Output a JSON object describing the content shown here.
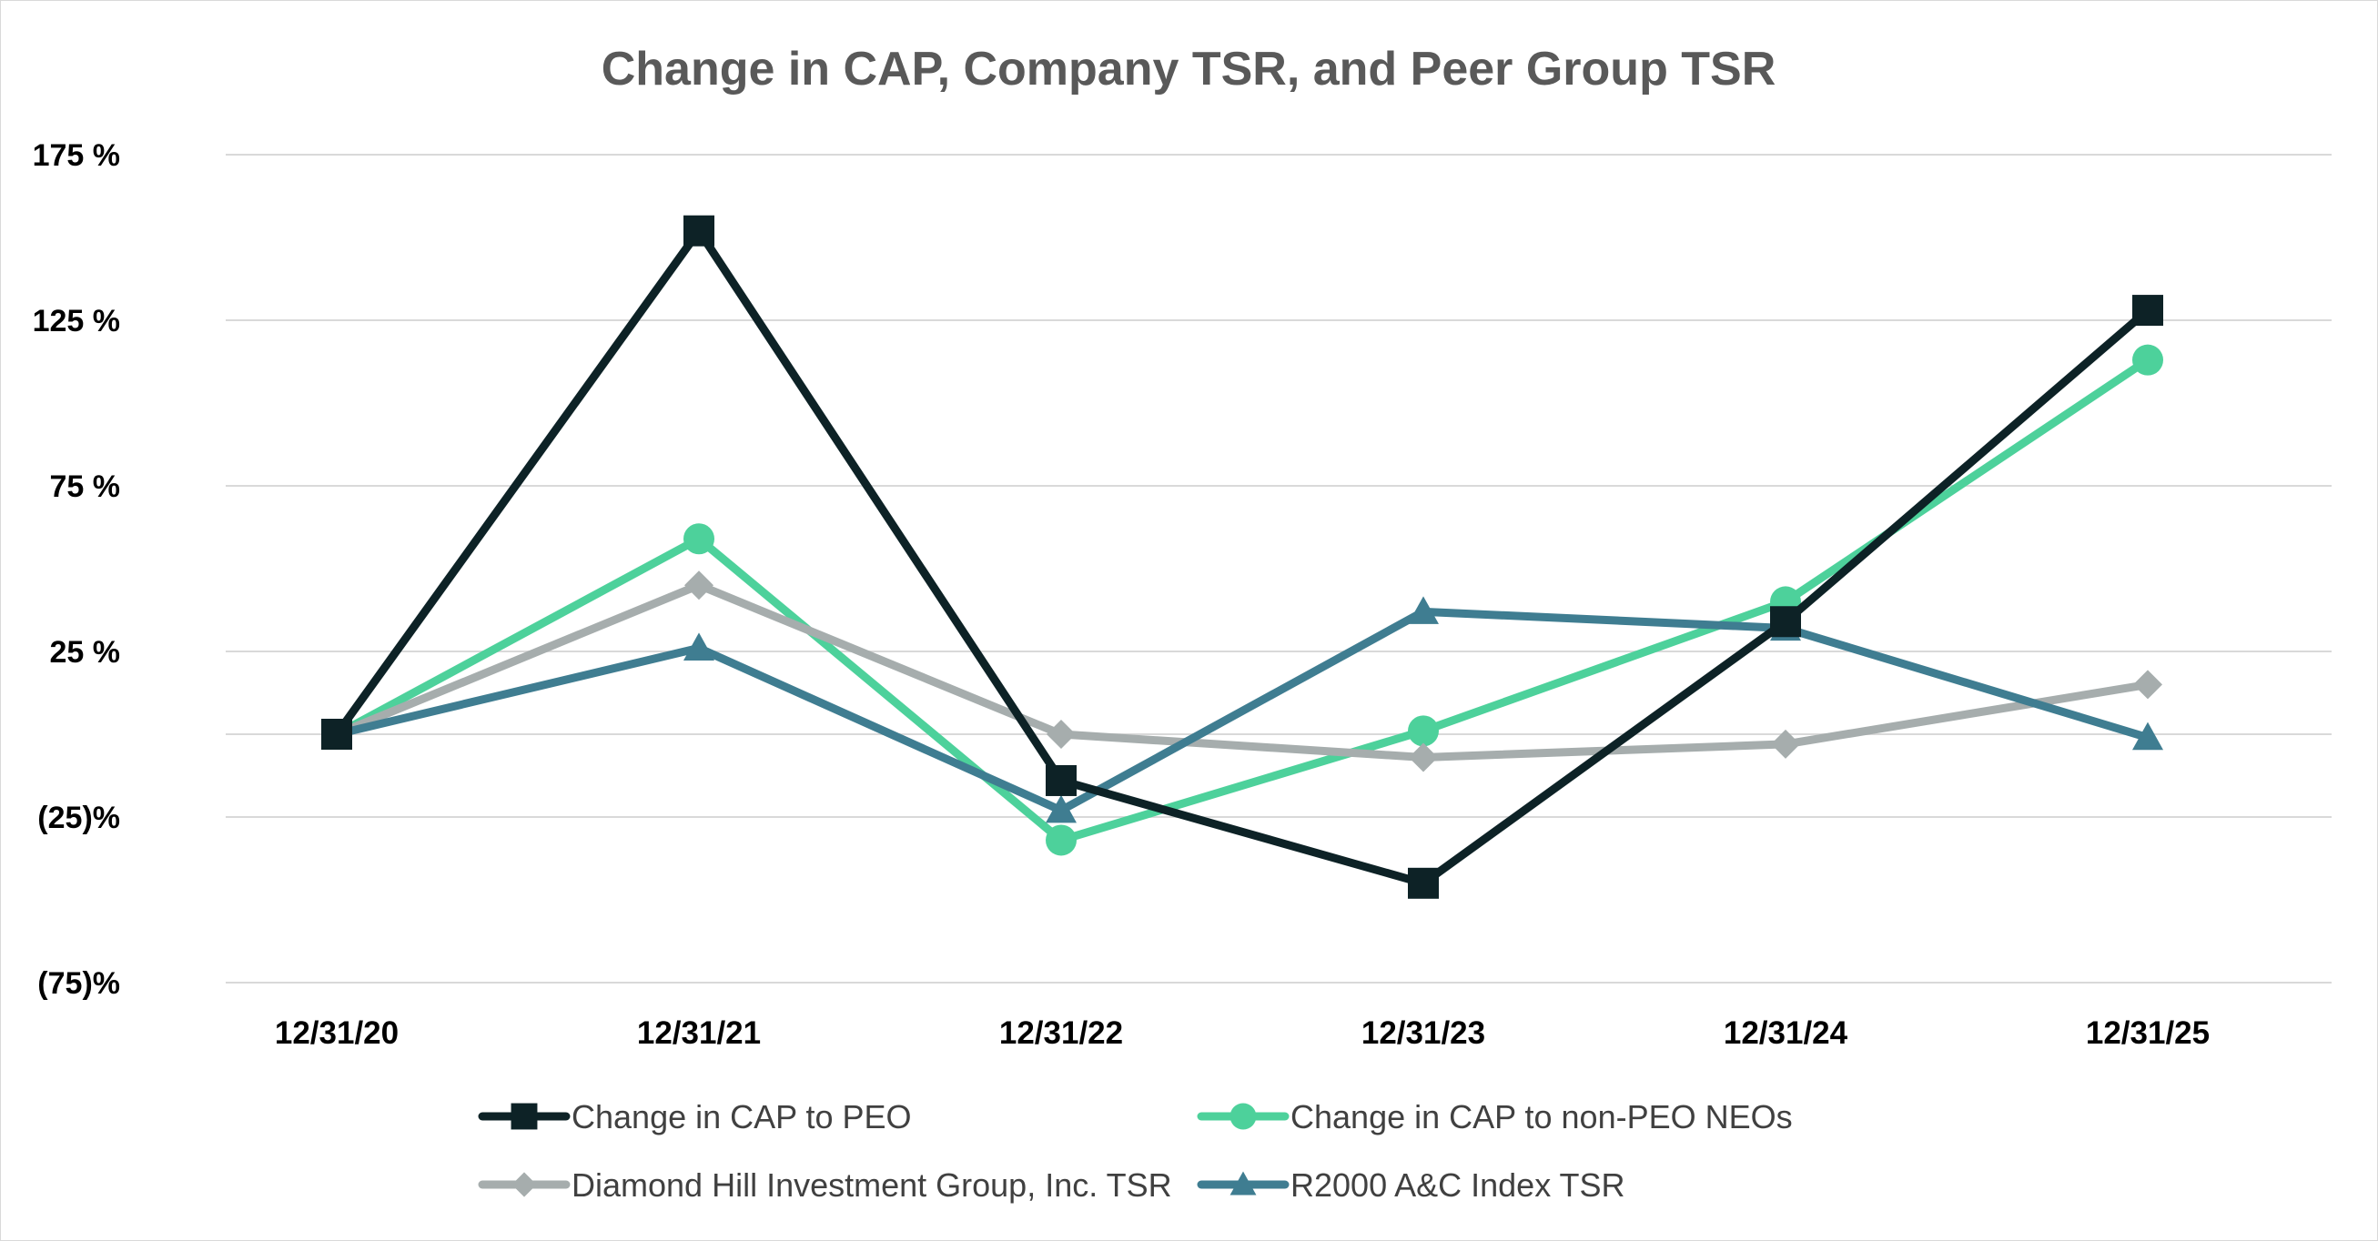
{
  "chart_data": {
    "type": "line",
    "title": "Change in CAP, Company TSR, and Peer Group TSR",
    "categories": [
      "12/31/20",
      "12/31/21",
      "12/31/22",
      "12/31/23",
      "12/31/24",
      "12/31/25"
    ],
    "ylim": [
      -75,
      175
    ],
    "yticks": [
      175,
      125,
      75,
      25,
      -25,
      -75
    ],
    "ytick_labels": [
      "175 %",
      "125 %",
      "75 %",
      "25 %",
      "(25)%",
      "(75)%"
    ],
    "zero_line": true,
    "legend_position": "bottom",
    "series": [
      {
        "name": "Change in CAP to non-PEO NEOs",
        "color": "#4dd19b",
        "marker": "circle",
        "values": [
          0,
          59,
          -32,
          1,
          40,
          113
        ]
      },
      {
        "name": "Diamond Hill Investment Group, Inc. TSR",
        "color": "#a6adad",
        "marker": "diamond",
        "values": [
          0,
          45,
          0,
          -7,
          -3,
          15
        ]
      },
      {
        "name": "R2000 A&C Index TSR",
        "color": "#3f7d91",
        "marker": "triangle",
        "values": [
          0,
          26,
          -23,
          37,
          32,
          -1
        ]
      },
      {
        "name": "Change in CAP to PEO",
        "color": "#0d2226",
        "marker": "square",
        "values": [
          0,
          152,
          -14,
          -45,
          34,
          128
        ]
      }
    ],
    "legend_order": [
      "Change in CAP to PEO",
      "Change in CAP to non-PEO NEOs",
      "Diamond Hill Investment Group, Inc. TSR",
      "R2000 A&C Index TSR"
    ]
  }
}
